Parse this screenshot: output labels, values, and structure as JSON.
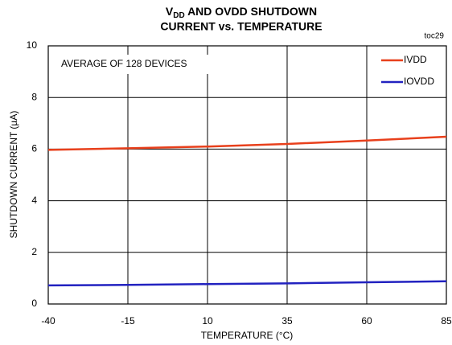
{
  "chart_data": {
    "type": "line",
    "title_parts": [
      "V",
      "DD",
      " AND OVDD SHUTDOWN"
    ],
    "title_line2": "CURRENT vs. TEMPERATURE",
    "annotations": [
      "toc29",
      "AVERAGE OF 128 DEVICES"
    ],
    "xlabel": "TEMPERATURE (°C)",
    "ylabel": "SHUTDOWN CURRENT (µA)",
    "x": [
      -40,
      -15,
      10,
      35,
      60,
      85
    ],
    "series": [
      {
        "name": "IVDD",
        "color": "#e8401c",
        "values": [
          5.97,
          6.03,
          6.1,
          6.2,
          6.33,
          6.48
        ]
      },
      {
        "name": "IOVDD",
        "color": "#2222c0",
        "values": [
          0.72,
          0.74,
          0.77,
          0.8,
          0.84,
          0.88
        ]
      }
    ],
    "xlim": [
      -40,
      85
    ],
    "xticks": [
      -40,
      -15,
      10,
      35,
      60,
      85
    ],
    "ylim": [
      0,
      10
    ],
    "yticks": [
      0,
      2,
      4,
      6,
      8,
      10
    ],
    "grid": true,
    "legend": "top-right"
  }
}
